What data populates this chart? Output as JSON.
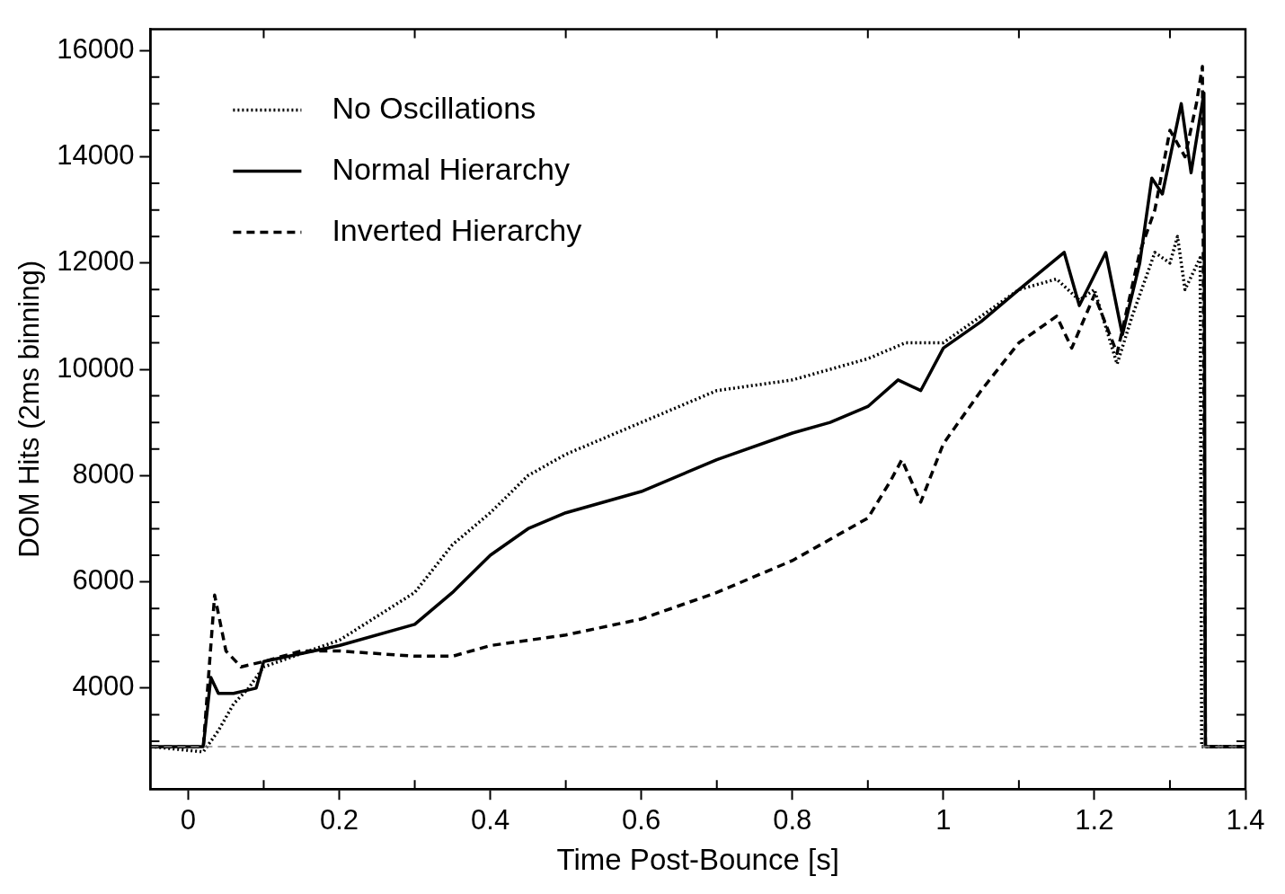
{
  "chart_data": {
    "type": "line",
    "xlabel": "Time Post-Bounce [s]",
    "ylabel": "DOM Hits (2ms binning)",
    "xlim": [
      -0.05,
      1.4
    ],
    "ylim": [
      2100,
      16400
    ],
    "xticks": [
      0,
      0.2,
      0.4,
      0.6,
      0.8,
      1,
      1.2,
      1.4
    ],
    "yticks": [
      4000,
      6000,
      8000,
      10000,
      12000,
      14000,
      16000
    ],
    "grid": false,
    "legend": "top left",
    "ref_lines": [
      {
        "axis": "y",
        "value": 2900,
        "color": "#888888",
        "line_style": "dashed"
      }
    ],
    "series": [
      {
        "name": "No Oscillations",
        "color": "#000000",
        "line_style": "dotted",
        "x": [
          -0.05,
          0.02,
          0.04,
          0.06,
          0.08,
          0.1,
          0.2,
          0.3,
          0.35,
          0.4,
          0.45,
          0.5,
          0.6,
          0.7,
          0.8,
          0.9,
          0.95,
          1.0,
          1.05,
          1.1,
          1.15,
          1.18,
          1.2,
          1.23,
          1.25,
          1.28,
          1.3,
          1.31,
          1.32,
          1.34,
          1.342,
          1.4
        ],
        "values": [
          2900,
          2800,
          3200,
          3700,
          4000,
          4400,
          4900,
          5800,
          6700,
          7300,
          8000,
          8400,
          9000,
          9600,
          9800,
          10200,
          10500,
          10500,
          11000,
          11500,
          11700,
          11300,
          11500,
          10100,
          11000,
          12200,
          12000,
          12500,
          11500,
          12100,
          2900,
          2900
        ]
      },
      {
        "name": "Normal Hierarchy",
        "color": "#000000",
        "line_style": "solid",
        "x": [
          -0.05,
          0.02,
          0.03,
          0.04,
          0.06,
          0.09,
          0.1,
          0.2,
          0.3,
          0.35,
          0.4,
          0.45,
          0.5,
          0.6,
          0.7,
          0.8,
          0.85,
          0.9,
          0.94,
          0.97,
          1.0,
          1.05,
          1.1,
          1.16,
          1.18,
          1.215,
          1.237,
          1.26,
          1.276,
          1.29,
          1.315,
          1.328,
          1.345,
          1.347,
          1.4
        ],
        "values": [
          2900,
          2900,
          4200,
          3900,
          3900,
          4000,
          4500,
          4800,
          5200,
          5800,
          6500,
          7000,
          7300,
          7700,
          8300,
          8800,
          9000,
          9300,
          9800,
          9600,
          10400,
          10900,
          11500,
          12200,
          11200,
          12200,
          10650,
          12000,
          13600,
          13300,
          15000,
          13700,
          15200,
          2900,
          2900
        ]
      },
      {
        "name": "Inverted Hierarchy",
        "color": "#000000",
        "line_style": "dashed",
        "x": [
          -0.05,
          0.02,
          0.035,
          0.05,
          0.07,
          0.1,
          0.15,
          0.2,
          0.3,
          0.35,
          0.4,
          0.5,
          0.6,
          0.7,
          0.8,
          0.85,
          0.9,
          0.93,
          0.945,
          0.97,
          1.0,
          1.05,
          1.1,
          1.15,
          1.17,
          1.2,
          1.23,
          1.26,
          1.28,
          1.3,
          1.32,
          1.335,
          1.343,
          1.347,
          1.4
        ],
        "values": [
          2900,
          2900,
          5750,
          4700,
          4400,
          4500,
          4700,
          4700,
          4600,
          4600,
          4800,
          5000,
          5300,
          5800,
          6400,
          6800,
          7200,
          7900,
          8300,
          7500,
          8600,
          9600,
          10500,
          11000,
          10400,
          11400,
          10300,
          12200,
          13000,
          14500,
          14000,
          15000,
          15700,
          2900,
          2900
        ]
      }
    ]
  }
}
